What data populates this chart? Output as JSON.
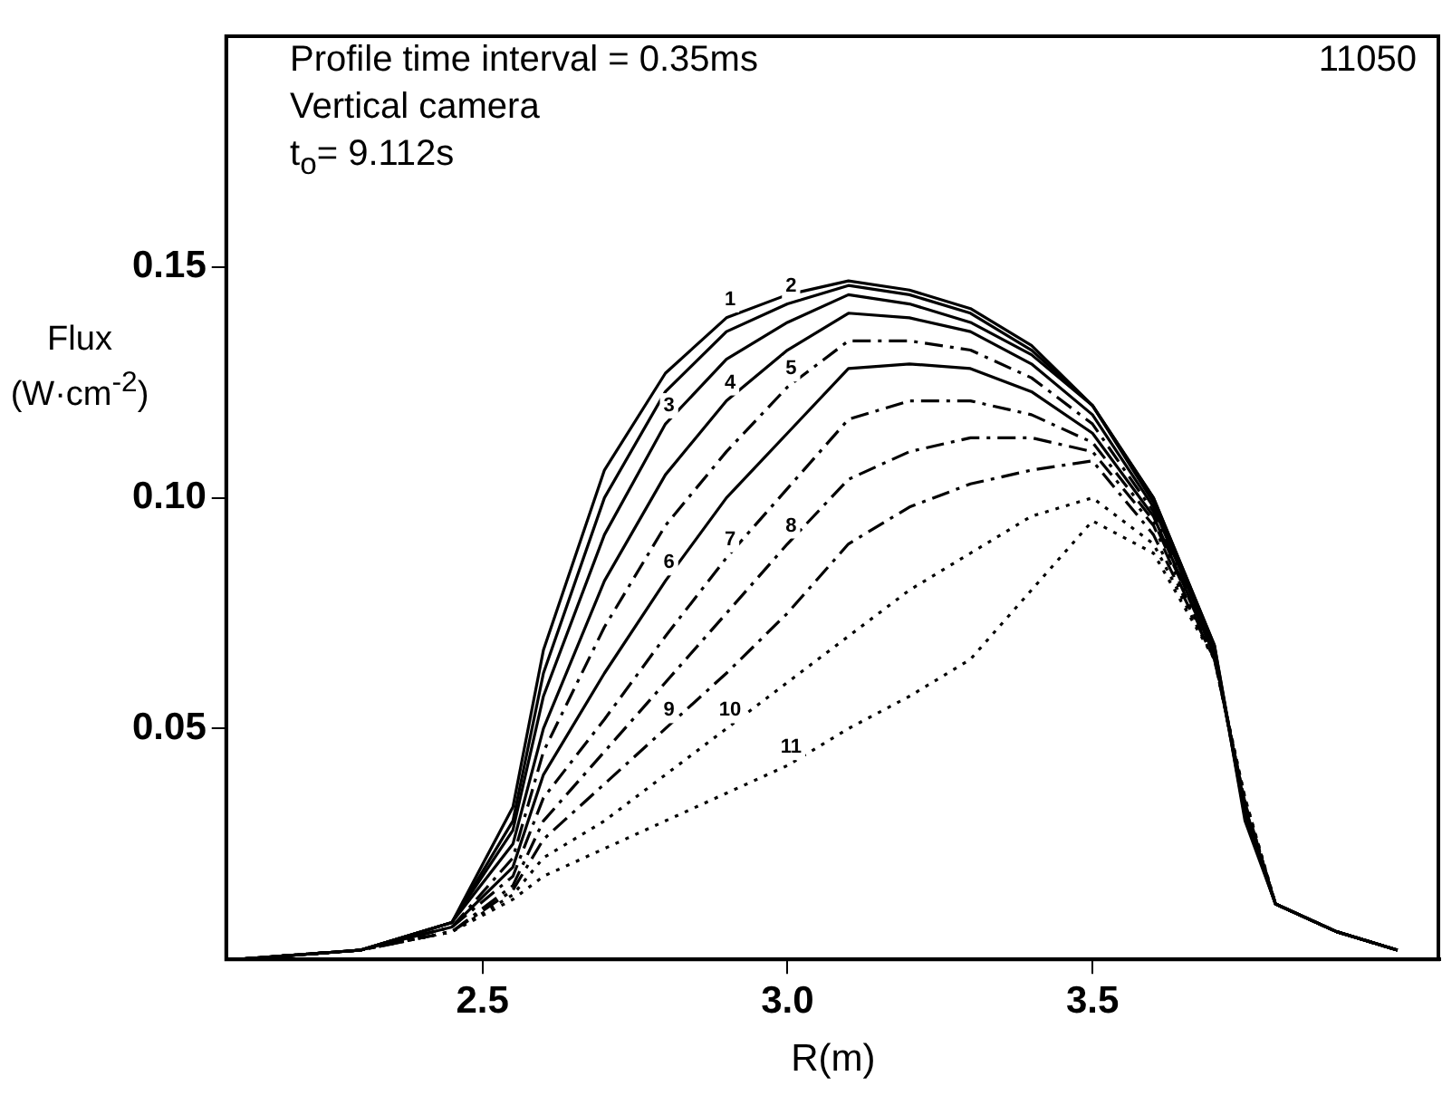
{
  "chart_data": {
    "type": "line",
    "xlabel": "R(m)",
    "ylabel": "Flux (W·cm$^{-2}$)",
    "annotations": [
      "Profile time interval = 0.35ms",
      "11050",
      "Vertical camera",
      "t$_{o}$= 9.112s"
    ],
    "x": [
      2.1,
      2.3,
      2.45,
      2.55,
      2.6,
      2.7,
      2.8,
      2.9,
      3.0,
      3.1,
      3.2,
      3.3,
      3.4,
      3.5,
      3.6,
      3.7,
      3.75,
      3.8,
      3.9,
      4.0
    ],
    "xlim": [
      2.08,
      4.07
    ],
    "xticks": [
      2.5,
      {
        "value": 3,
        "label": "3.0"
      },
      3.5
    ],
    "ylim": [
      0,
      0.2
    ],
    "yticks": [
      0.05,
      {
        "value": 0.1,
        "label": "0.10"
      },
      0.15
    ],
    "grid": false,
    "legend": false,
    "marker": "none",
    "series": [
      {
        "name": "1",
        "color": "#000000",
        "line_style": "solid",
        "values": [
          0,
          0.002,
          0.008,
          0.033,
          0.067,
          0.106,
          0.127,
          0.139,
          0.144,
          0.147,
          0.145,
          0.141,
          0.133,
          0.12,
          0.1,
          0.068,
          0.03,
          0.012,
          0.006,
          0.002
        ]
      },
      {
        "name": "2",
        "color": "#000000",
        "line_style": "solid",
        "values": [
          0,
          0.002,
          0.008,
          0.03,
          0.062,
          0.1,
          0.123,
          0.136,
          0.142,
          0.146,
          0.144,
          0.14,
          0.132,
          0.12,
          0.1,
          0.068,
          0.031,
          0.012,
          0.006,
          0.002
        ]
      },
      {
        "name": "3",
        "color": "#000000",
        "line_style": "solid",
        "values": [
          0,
          0.002,
          0.008,
          0.028,
          0.057,
          0.092,
          0.116,
          0.13,
          0.138,
          0.144,
          0.142,
          0.138,
          0.131,
          0.12,
          0.099,
          0.067,
          0.031,
          0.012,
          0.006,
          0.002
        ]
      },
      {
        "name": "4",
        "color": "#000000",
        "line_style": "solid",
        "values": [
          0,
          0.002,
          0.008,
          0.025,
          0.05,
          0.082,
          0.105,
          0.121,
          0.132,
          0.14,
          0.139,
          0.136,
          0.129,
          0.118,
          0.098,
          0.067,
          0.032,
          0.012,
          0.006,
          0.002
        ]
      },
      {
        "name": "5",
        "color": "#000000",
        "line_style": "dashed",
        "values": [
          0,
          0.002,
          0.007,
          0.022,
          0.045,
          0.072,
          0.094,
          0.11,
          0.124,
          0.134,
          0.134,
          0.132,
          0.126,
          0.116,
          0.097,
          0.066,
          0.032,
          0.012,
          0.006,
          0.002
        ]
      },
      {
        "name": "6",
        "color": "#000000",
        "line_style": "solid",
        "values": [
          0,
          0.002,
          0.007,
          0.02,
          0.04,
          0.062,
          0.082,
          0.1,
          0.114,
          0.128,
          0.129,
          0.128,
          0.123,
          0.114,
          0.096,
          0.066,
          0.033,
          0.012,
          0.006,
          0.002
        ]
      },
      {
        "name": "7",
        "color": "#000000",
        "line_style": "dashed",
        "values": [
          0,
          0.002,
          0.007,
          0.018,
          0.035,
          0.052,
          0.07,
          0.087,
          0.102,
          0.117,
          0.121,
          0.121,
          0.118,
          0.112,
          0.095,
          0.066,
          0.033,
          0.012,
          0.006,
          0.002
        ]
      },
      {
        "name": "8",
        "color": "#000000",
        "line_style": "dashed",
        "values": [
          0,
          0.002,
          0.006,
          0.016,
          0.03,
          0.045,
          0.06,
          0.075,
          0.09,
          0.104,
          0.11,
          0.113,
          0.113,
          0.11,
          0.094,
          0.065,
          0.034,
          0.012,
          0.006,
          0.002
        ]
      },
      {
        "name": "9",
        "color": "#000000",
        "line_style": "dashed",
        "values": [
          0,
          0.002,
          0.006,
          0.015,
          0.026,
          0.038,
          0.05,
          0.062,
          0.075,
          0.09,
          0.098,
          0.103,
          0.106,
          0.108,
          0.092,
          0.065,
          0.034,
          0.012,
          0.006,
          0.002
        ]
      },
      {
        "name": "10",
        "color": "#000000",
        "line_style": "dotted",
        "values": [
          0,
          0.002,
          0.006,
          0.014,
          0.022,
          0.03,
          0.04,
          0.05,
          0.06,
          0.07,
          0.08,
          0.088,
          0.096,
          0.1,
          0.09,
          0.065,
          0.035,
          0.012,
          0.006,
          0.002
        ]
      },
      {
        "name": "11",
        "color": "#000000",
        "line_style": "dotted",
        "values": [
          0,
          0.002,
          0.006,
          0.013,
          0.018,
          0.024,
          0.03,
          0.036,
          0.042,
          0.05,
          0.057,
          0.065,
          0.08,
          0.095,
          0.088,
          0.065,
          0.035,
          0.012,
          0.006,
          0.002
        ]
      }
    ]
  }
}
